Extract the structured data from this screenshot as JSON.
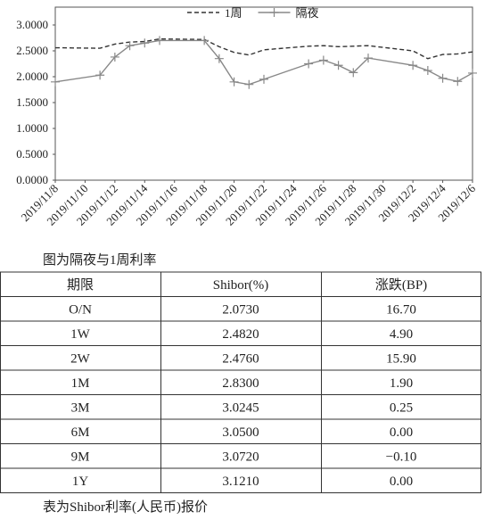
{
  "chart_data": {
    "type": "line",
    "x": [
      "2019/11/8",
      "2019/11/11",
      "2019/11/12",
      "2019/11/13",
      "2019/11/14",
      "2019/11/15",
      "2019/11/18",
      "2019/11/19",
      "2019/11/20",
      "2019/11/21",
      "2019/11/22",
      "2019/11/25",
      "2019/11/26",
      "2019/11/27",
      "2019/11/28",
      "2019/11/29",
      "2019/12/2",
      "2019/12/3",
      "2019/12/4",
      "2019/12/5",
      "2019/12/6"
    ],
    "series": [
      {
        "name": "1周",
        "color": "#333333",
        "dash": true,
        "values": [
          2.56,
          2.55,
          2.63,
          2.67,
          2.68,
          2.73,
          2.72,
          2.58,
          2.47,
          2.42,
          2.52,
          2.59,
          2.6,
          2.58,
          2.59,
          2.6,
          2.5,
          2.35,
          2.43,
          2.44,
          2.48
        ]
      },
      {
        "name": "隔夜",
        "color": "#888888",
        "marker": "plus",
        "values": [
          1.9,
          2.03,
          2.38,
          2.6,
          2.65,
          2.7,
          2.7,
          2.35,
          1.9,
          1.85,
          1.95,
          2.25,
          2.32,
          2.22,
          2.08,
          2.36,
          2.22,
          2.12,
          1.97,
          1.91,
          2.07
        ]
      }
    ],
    "xlim": [
      "2019/11/8",
      "2019/12/6"
    ],
    "xticks": [
      "2019/11/8",
      "2019/11/10",
      "2019/11/12",
      "2019/11/14",
      "2019/11/16",
      "2019/11/18",
      "2019/11/20",
      "2019/11/22",
      "2019/11/24",
      "2019/11/26",
      "2019/11/28",
      "2019/11/30",
      "2019/12/2",
      "2019/12/4",
      "2019/12/6"
    ],
    "ylim": [
      0,
      3
    ],
    "yticks": [
      {
        "value": 0,
        "label": "0.0000"
      },
      {
        "value": 0.5,
        "label": "0.5000"
      },
      {
        "value": 1,
        "label": "1.0000"
      },
      {
        "value": 1.5,
        "label": "1.5000"
      },
      {
        "value": 2,
        "label": "2.0000"
      },
      {
        "value": 2.5,
        "label": "2.5000"
      },
      {
        "value": 3,
        "label": "3.0000"
      }
    ],
    "legend": "top"
  },
  "chart_caption": "图为隔夜与1周利率",
  "table": {
    "header": [
      "期限",
      "Shibor(%)",
      "涨跌(BP)"
    ],
    "rows": [
      [
        "O/N",
        "2.0730",
        "16.70"
      ],
      [
        "1W",
        "2.4820",
        "4.90"
      ],
      [
        "2W",
        "2.4760",
        "15.90"
      ],
      [
        "1M",
        "2.8300",
        "1.90"
      ],
      [
        "3M",
        "3.0245",
        "0.25"
      ],
      [
        "6M",
        "3.0500",
        "0.00"
      ],
      [
        "9M",
        "3.0720",
        "−0.10"
      ],
      [
        "1Y",
        "3.1210",
        "0.00"
      ]
    ]
  },
  "table_caption": "表为Shibor利率(人民币)报价"
}
